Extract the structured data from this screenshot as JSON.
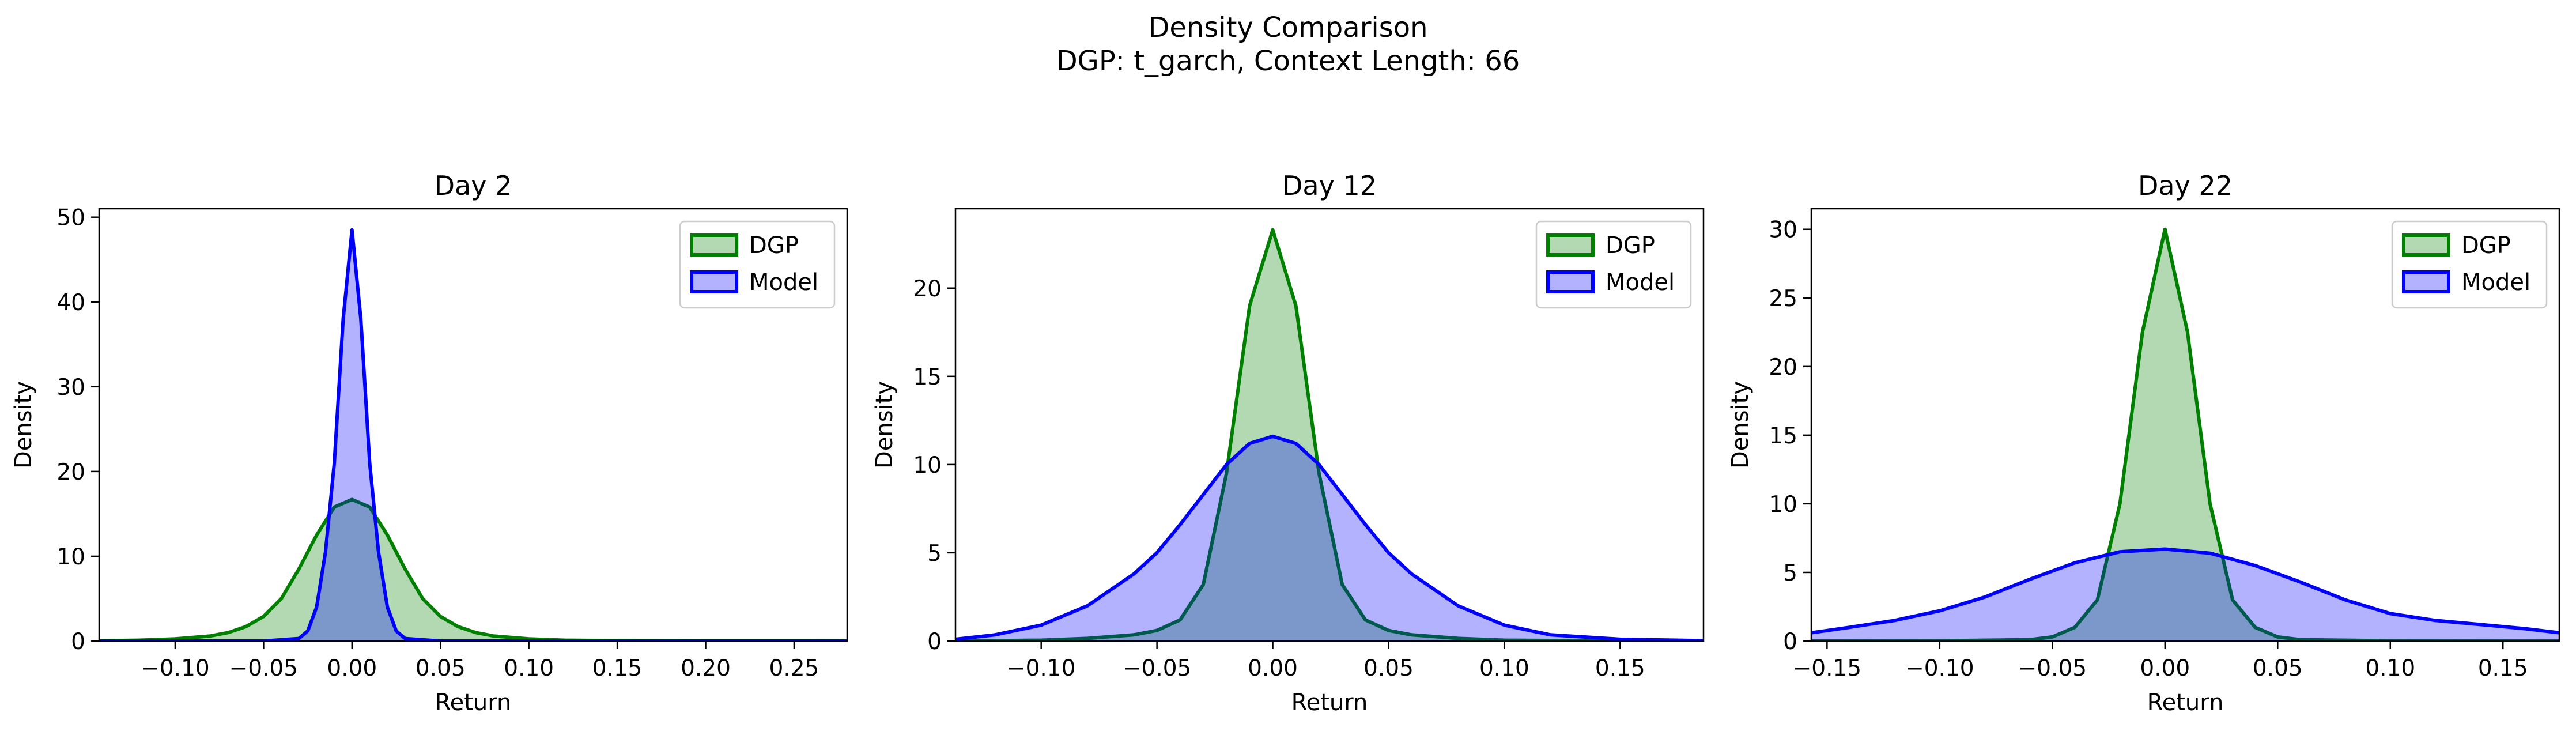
{
  "figure": {
    "title": "Density Comparison",
    "subtitle": "DGP: t_garch, Context Length: 66"
  },
  "colors": {
    "dgp_line": "#008000",
    "dgp_fill": "#008000",
    "model_line": "#0000ff",
    "model_fill": "#0000ff"
  },
  "legend": {
    "placement": "upper right",
    "entries": [
      "DGP",
      "Model"
    ]
  },
  "chart_data": [
    {
      "type": "area",
      "title": "Day 2",
      "xlabel": "Return",
      "ylabel": "Density",
      "xlim": [
        -0.143,
        0.28
      ],
      "ylim": [
        0,
        51
      ],
      "xticks": [
        -0.1,
        -0.05,
        0.0,
        0.05,
        0.1,
        0.15,
        0.2,
        0.25
      ],
      "xtick_labels": [
        "−0.10",
        "−0.05",
        "0.00",
        "0.05",
        "0.10",
        "0.15",
        "0.20",
        "0.25"
      ],
      "yticks": [
        0,
        10,
        20,
        30,
        40,
        50
      ],
      "ytick_labels": [
        "0",
        "10",
        "20",
        "30",
        "40",
        "50"
      ],
      "grid": false,
      "series": [
        {
          "name": "DGP",
          "x": [
            -0.143,
            -0.12,
            -0.1,
            -0.08,
            -0.07,
            -0.06,
            -0.05,
            -0.04,
            -0.03,
            -0.02,
            -0.01,
            0.0,
            0.01,
            0.02,
            0.03,
            0.04,
            0.05,
            0.06,
            0.07,
            0.08,
            0.1,
            0.12,
            0.15,
            0.2,
            0.28
          ],
          "y": [
            0.03,
            0.1,
            0.25,
            0.6,
            1.0,
            1.7,
            2.9,
            5.0,
            8.5,
            12.5,
            15.8,
            16.7,
            15.8,
            12.5,
            8.5,
            5.0,
            2.9,
            1.7,
            1.0,
            0.6,
            0.25,
            0.1,
            0.05,
            0.03,
            0.02
          ]
        },
        {
          "name": "Model",
          "x": [
            -0.143,
            -0.05,
            -0.03,
            -0.025,
            -0.02,
            -0.015,
            -0.01,
            -0.005,
            0.0,
            0.005,
            0.01,
            0.015,
            0.02,
            0.025,
            0.03,
            0.05,
            0.28
          ],
          "y": [
            0.0,
            0.0,
            0.3,
            1.2,
            4.0,
            10.5,
            21.0,
            38.0,
            48.5,
            38.0,
            21.0,
            10.5,
            4.0,
            1.2,
            0.3,
            0.0,
            0.0
          ]
        }
      ]
    },
    {
      "type": "area",
      "title": "Day 12",
      "xlabel": "Return",
      "ylabel": "Density",
      "xlim": [
        -0.137,
        0.186
      ],
      "ylim": [
        0,
        24.5
      ],
      "xticks": [
        -0.1,
        -0.05,
        0.0,
        0.05,
        0.1,
        0.15
      ],
      "xtick_labels": [
        "−0.10",
        "−0.05",
        "0.00",
        "0.05",
        "0.10",
        "0.15"
      ],
      "yticks": [
        0,
        5,
        10,
        15,
        20
      ],
      "ytick_labels": [
        "0",
        "5",
        "10",
        "15",
        "20"
      ],
      "grid": false,
      "series": [
        {
          "name": "DGP",
          "x": [
            -0.137,
            -0.1,
            -0.08,
            -0.06,
            -0.05,
            -0.04,
            -0.03,
            -0.02,
            -0.01,
            0.0,
            0.01,
            0.02,
            0.03,
            0.04,
            0.05,
            0.06,
            0.08,
            0.1,
            0.14,
            0.186
          ],
          "y": [
            0.0,
            0.05,
            0.15,
            0.35,
            0.6,
            1.2,
            3.2,
            9.5,
            19.0,
            23.3,
            19.0,
            9.5,
            3.2,
            1.2,
            0.6,
            0.35,
            0.15,
            0.05,
            0.02,
            0.0
          ]
        },
        {
          "name": "Model",
          "x": [
            -0.137,
            -0.12,
            -0.1,
            -0.08,
            -0.06,
            -0.05,
            -0.04,
            -0.03,
            -0.02,
            -0.01,
            0.0,
            0.01,
            0.02,
            0.03,
            0.04,
            0.05,
            0.06,
            0.08,
            0.1,
            0.12,
            0.15,
            0.186
          ],
          "y": [
            0.1,
            0.35,
            0.9,
            2.0,
            3.8,
            5.0,
            6.6,
            8.3,
            10.0,
            11.2,
            11.6,
            11.2,
            10.0,
            8.3,
            6.6,
            5.0,
            3.8,
            2.0,
            0.9,
            0.35,
            0.1,
            0.02
          ]
        }
      ]
    },
    {
      "type": "area",
      "title": "Day 22",
      "xlabel": "Return",
      "ylabel": "Density",
      "xlim": [
        -0.157,
        0.175
      ],
      "ylim": [
        0,
        31.5
      ],
      "xticks": [
        -0.15,
        -0.1,
        -0.05,
        0.0,
        0.05,
        0.1,
        0.15
      ],
      "xtick_labels": [
        "−0.15",
        "−0.10",
        "−0.05",
        "0.00",
        "0.05",
        "0.10",
        "0.15"
      ],
      "yticks": [
        0,
        5,
        10,
        15,
        20,
        25,
        30
      ],
      "ytick_labels": [
        "0",
        "5",
        "10",
        "15",
        "20",
        "25",
        "30"
      ],
      "grid": false,
      "series": [
        {
          "name": "DGP",
          "x": [
            -0.157,
            -0.1,
            -0.06,
            -0.05,
            -0.04,
            -0.03,
            -0.02,
            -0.01,
            0.0,
            0.01,
            0.02,
            0.03,
            0.04,
            0.05,
            0.06,
            0.1,
            0.175
          ],
          "y": [
            0.0,
            0.02,
            0.1,
            0.3,
            1.0,
            3.0,
            10.0,
            22.5,
            30.0,
            22.5,
            10.0,
            3.0,
            1.0,
            0.3,
            0.1,
            0.02,
            0.0
          ]
        },
        {
          "name": "Model",
          "x": [
            -0.157,
            -0.14,
            -0.12,
            -0.1,
            -0.08,
            -0.06,
            -0.04,
            -0.02,
            0.0,
            0.02,
            0.04,
            0.06,
            0.08,
            0.1,
            0.12,
            0.14,
            0.16,
            0.175
          ],
          "y": [
            0.6,
            1.0,
            1.5,
            2.2,
            3.2,
            4.5,
            5.7,
            6.5,
            6.7,
            6.4,
            5.5,
            4.3,
            3.0,
            2.0,
            1.5,
            1.2,
            0.9,
            0.6
          ]
        }
      ]
    }
  ]
}
